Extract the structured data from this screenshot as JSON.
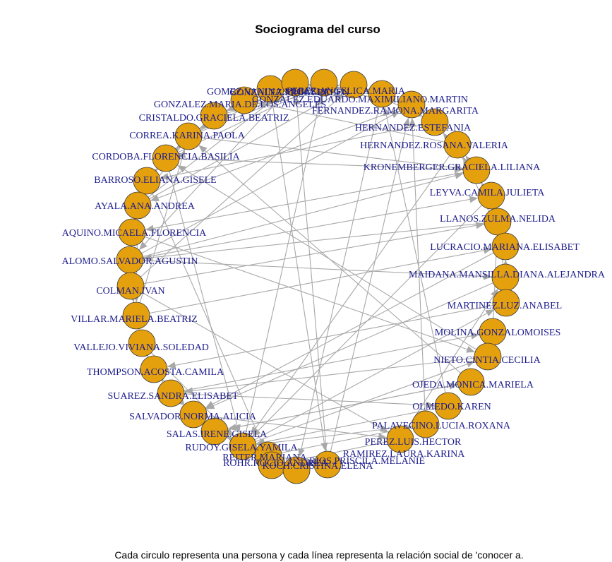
{
  "title": "Sociograma del curso",
  "caption": "Cada circulo representa una persona y cada línea representa la relación social de 'conocer a.",
  "colors": {
    "node_fill": "#e5a00d",
    "node_stroke": "#3a3a3a",
    "edge": "#a8a8a8",
    "label": "#1c1c8c"
  },
  "nodes": [
    "GOMEZ.VANINA.MICAELA",
    "GONZALEZ.ERIKA.BELEN",
    "PEREZ.ANGELICA.MARIA",
    "GONZALEZ.EDUARDO.MAXIMILIANO.MARTIN",
    "FERNANDEZ.RAMONA.MARGARITA",
    "GONZALEZ.MARIA.DE.LOS.ANGELES",
    "HERNANDEZ.ESTEFANIA",
    "CRISTALDO.GRACIELA.BEATRIZ",
    "HERNANDEZ.ROSANA.VALERIA",
    "CORREA.KARINA.PAOLA",
    "KRONEMBERGER.GRACIELA.LILIANA",
    "CORDOBA.FLORENCIA.BASILIA",
    "LEYVA.CAMILA.JULIETA",
    "BARROSO.ELIANA.GISELE",
    "LLANOS.ZULMA.NELIDA",
    "AYALA.ANA.ANDREA",
    "LUCRACIO.MARIANA.ELISABET",
    "AQUINO.MICAELA.FLORENCIA",
    "MAIDANA.MANSILLA.DIANA.ALEJANDRA",
    "ALOMO.SALVADOR.AGUSTIN",
    "MARTINEZ.LUZ.ANABEL",
    "COLMAN.IVAN",
    "MOLINA.GONZALOMOISES",
    "VILLAR.MARIELA.BEATRIZ",
    "NIETO.CINTIA.CECILIA",
    "VALLEJO.VIVIANA.SOLEDAD",
    "OJEDA.MONICA.MARIELA",
    "THOMPSON.ACOSTA.CAMILA",
    "OLMEDO.KAREN",
    "SUAREZ.SANDRA.ELISABET",
    "PALAVECINO.LUCIA.ROXANA",
    "SALVADOR.NORMA.ALICIA",
    "PEREZ.LUIS.HECTOR",
    "SALAS.IRENE.GISELA",
    "RAMIREZ.LAURA.KARINA",
    "RUDOY.GISELA.YAMILA",
    "REITER.MARIANA",
    "ROHR.ROCIO.ANDREA",
    "RIOS.PRISCILA.MELANIE",
    "KOCH.CRISTINA.ELENA"
  ]
}
